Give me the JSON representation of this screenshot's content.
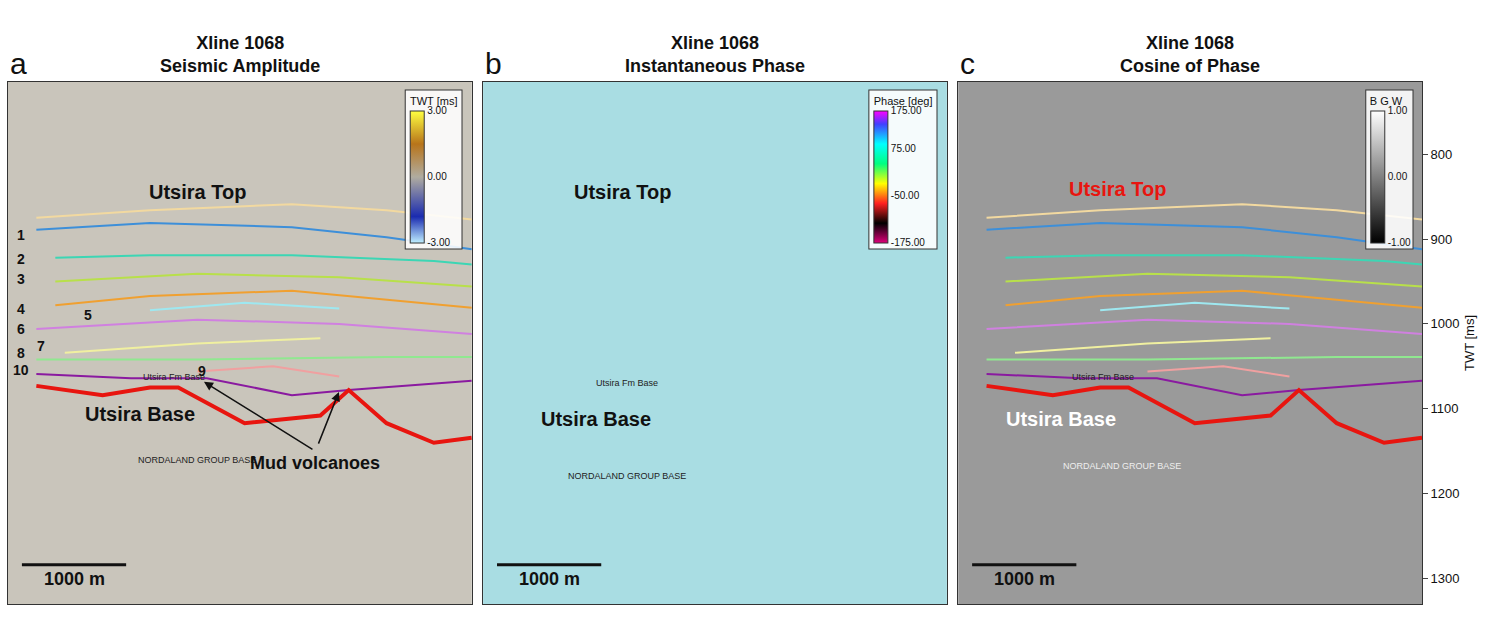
{
  "chart_data": [
    {
      "type": "line",
      "panel": "a",
      "title": "Xline 1068",
      "subtitle": "Seismic Amplitude",
      "xlim": [
        0,
        4450
      ],
      "ylim": [
        1330,
        715
      ],
      "tick_labels": false,
      "grid": false,
      "series": [
        {
          "name": "Utsira Top",
          "color": "#f2d9a0",
          "x": [
            272,
            1362,
            2724,
            3632,
            4450
          ],
          "values": [
            875,
            866,
            859,
            866,
            877
          ]
        },
        {
          "name": "1",
          "color": "#3d8fd9",
          "x": [
            272,
            1362,
            2724,
            3632,
            4450
          ],
          "values": [
            889,
            881,
            886,
            898,
            912
          ]
        },
        {
          "name": "2",
          "color": "#3cd6b4",
          "x": [
            454,
            1362,
            2724,
            4086,
            4450
          ],
          "values": [
            922,
            919,
            919,
            926,
            930
          ]
        },
        {
          "name": "3",
          "color": "#b8e04a",
          "x": [
            454,
            1816,
            3178,
            4450
          ],
          "values": [
            950,
            941,
            945,
            956
          ]
        },
        {
          "name": "4",
          "color": "#f0a030",
          "x": [
            454,
            1362,
            2724,
            4450
          ],
          "values": [
            978,
            967,
            961,
            981
          ]
        },
        {
          "name": "5",
          "color": "#9ee8f0",
          "x": [
            1362,
            2270,
            3178
          ],
          "values": [
            984,
            975,
            982
          ]
        },
        {
          "name": "6",
          "color": "#d080e0",
          "x": [
            272,
            1816,
            3178,
            4450
          ],
          "values": [
            1006,
            995,
            1000,
            1012
          ]
        },
        {
          "name": "7",
          "color": "#f0f0a0",
          "x": [
            545,
            1816,
            2997
          ],
          "values": [
            1034,
            1023,
            1017
          ]
        },
        {
          "name": "8",
          "color": "#90e890",
          "x": [
            272,
            1816,
            3632,
            4450
          ],
          "values": [
            1042,
            1042,
            1039,
            1039
          ]
        },
        {
          "name": "9",
          "color": "#f0a0a0",
          "x": [
            1816,
            2543,
            3178
          ],
          "values": [
            1056,
            1050,
            1062
          ]
        },
        {
          "name": "10",
          "color": "#8a1aa0",
          "x": [
            272,
            1180,
            1907,
            2724,
            3269,
            4450
          ],
          "values": [
            1059,
            1064,
            1064,
            1084,
            1078,
            1067
          ]
        },
        {
          "name": "Utsira Base",
          "color": "#e8150f",
          "line_style": "thick",
          "x": [
            272,
            908,
            1362,
            1634,
            2270,
            2997,
            3269,
            3632,
            4086,
            4450
          ],
          "values": [
            1073,
            1084,
            1075,
            1075,
            1117,
            1108,
            1078,
            1117,
            1140,
            1134
          ]
        }
      ],
      "annotations": [
        {
          "text": "Utsira Top",
          "x": 1818,
          "y": 845,
          "kind": "label",
          "color": "#111111"
        },
        {
          "text": "Utsira Base",
          "x": 1270,
          "y": 1106,
          "kind": "label",
          "color": "#111111"
        },
        {
          "text": "Utsira Fm Base",
          "x": 1590,
          "y": 1062,
          "kind": "small",
          "color": "#222222"
        },
        {
          "text": "NORDALAND GROUP BASE",
          "x": 1818,
          "y": 1160,
          "kind": "small",
          "color": "#222222"
        },
        {
          "text": "1",
          "x": 120,
          "y": 895,
          "kind": "horizon",
          "color": "#111111"
        },
        {
          "text": "2",
          "x": 120,
          "y": 924,
          "kind": "horizon",
          "color": "#111111"
        },
        {
          "text": "3",
          "x": 120,
          "y": 947,
          "kind": "horizon",
          "color": "#111111"
        },
        {
          "text": "4",
          "x": 120,
          "y": 982,
          "kind": "horizon",
          "color": "#111111"
        },
        {
          "text": "5",
          "x": 770,
          "y": 989,
          "kind": "horizon",
          "color": "#111111"
        },
        {
          "text": "6",
          "x": 120,
          "y": 1006,
          "kind": "horizon",
          "color": "#111111"
        },
        {
          "text": "7",
          "x": 320,
          "y": 1026,
          "kind": "horizon",
          "color": "#111111"
        },
        {
          "text": "8",
          "x": 120,
          "y": 1034,
          "kind": "horizon",
          "color": "#111111"
        },
        {
          "text": "9",
          "x": 1860,
          "y": 1056,
          "kind": "horizon",
          "color": "#111111"
        },
        {
          "text": "10",
          "x": 120,
          "y": 1054,
          "kind": "horizon",
          "color": "#111111"
        }
      ],
      "callout": {
        "text": "Mud volcanoes",
        "x": 2950,
        "y": 1150,
        "color": "#111111",
        "targets": [
          {
            "x": 1864,
            "y": 1067
          },
          {
            "x": 3182,
            "y": 1078
          }
        ]
      },
      "colorbar": {
        "title": "TWT [ms]",
        "range": [
          -3,
          3
        ],
        "ticks": [
          {
            "value": 3,
            "label": "3.00"
          },
          {
            "value": 0,
            "label": "0.00"
          },
          {
            "value": -3,
            "label": "-3.00"
          }
        ]
      },
      "scale_bar": {
        "length": 1000,
        "label": "1000 m"
      }
    },
    {
      "type": "image",
      "panel": "b",
      "title": "Xline 1068",
      "subtitle": "Instantaneous Phase",
      "xlim": [
        0,
        4450
      ],
      "ylim": [
        1330,
        715
      ],
      "tick_labels": false,
      "grid": false,
      "series": [],
      "annotations": [
        {
          "text": "Utsira Top",
          "x": 1335,
          "y": 845,
          "kind": "label",
          "color": "#111111"
        },
        {
          "text": "Utsira Base",
          "x": 1088,
          "y": 1112,
          "kind": "label",
          "color": "#111111"
        },
        {
          "text": "Utsira Fm Base",
          "x": 1384,
          "y": 1070,
          "kind": "small",
          "color": "#222222"
        },
        {
          "text": "NORDALAND GROUP BASE",
          "x": 1384,
          "y": 1179,
          "kind": "small",
          "color": "#222222"
        }
      ],
      "colorbar": {
        "title": "Phase [deg]",
        "range": [
          -175,
          175
        ],
        "ticks": [
          {
            "value": 175,
            "label": "175.00"
          },
          {
            "value": 75,
            "label": "75.00"
          },
          {
            "value": -50,
            "label": "-50.00"
          },
          {
            "value": -175,
            "label": "-175.00"
          }
        ]
      },
      "scale_bar": {
        "length": 1000,
        "label": "1000 m"
      }
    },
    {
      "type": "line",
      "panel": "c",
      "title": "Xline 1068",
      "subtitle": "Cosine of Phase",
      "xlim": [
        0,
        4450
      ],
      "ylim": [
        1330,
        715
      ],
      "yticks": [
        800,
        900,
        1000,
        1100,
        1200,
        1300
      ],
      "y_label": "TWT [ms]",
      "tick_labels": "y",
      "grid": false,
      "series": [
        {
          "name": "Utsira Top",
          "color": "#f2d9a0",
          "x": [
            272,
            1362,
            2724,
            3632,
            4450
          ],
          "values": [
            875,
            866,
            859,
            866,
            877
          ]
        },
        {
          "name": "1",
          "color": "#3d8fd9",
          "x": [
            272,
            1362,
            2724,
            3632,
            4450
          ],
          "values": [
            889,
            881,
            886,
            898,
            912
          ]
        },
        {
          "name": "2",
          "color": "#3cd6b4",
          "x": [
            454,
            1362,
            2724,
            4086,
            4450
          ],
          "values": [
            922,
            919,
            919,
            926,
            930
          ]
        },
        {
          "name": "3",
          "color": "#b8e04a",
          "x": [
            454,
            1816,
            3178,
            4450
          ],
          "values": [
            950,
            941,
            945,
            956
          ]
        },
        {
          "name": "4",
          "color": "#f0a030",
          "x": [
            454,
            1362,
            2724,
            4450
          ],
          "values": [
            978,
            967,
            961,
            981
          ]
        },
        {
          "name": "5",
          "color": "#9ee8f0",
          "x": [
            1362,
            2270,
            3178
          ],
          "values": [
            984,
            975,
            982
          ]
        },
        {
          "name": "6",
          "color": "#d080e0",
          "x": [
            272,
            1816,
            3178,
            4450
          ],
          "values": [
            1006,
            995,
            1000,
            1012
          ]
        },
        {
          "name": "7",
          "color": "#f0f0a0",
          "x": [
            545,
            1816,
            2997
          ],
          "values": [
            1034,
            1023,
            1017
          ]
        },
        {
          "name": "8",
          "color": "#90e890",
          "x": [
            272,
            1816,
            3632,
            4450
          ],
          "values": [
            1042,
            1042,
            1039,
            1039
          ]
        },
        {
          "name": "9",
          "color": "#f0a0a0",
          "x": [
            1816,
            2543,
            3178
          ],
          "values": [
            1056,
            1050,
            1062
          ]
        },
        {
          "name": "10",
          "color": "#8a1aa0",
          "x": [
            272,
            1180,
            1907,
            2724,
            3269,
            4450
          ],
          "values": [
            1059,
            1064,
            1064,
            1084,
            1078,
            1067
          ]
        },
        {
          "name": "Utsira Base",
          "color": "#e8150f",
          "line_style": "thick",
          "x": [
            272,
            908,
            1362,
            1634,
            2270,
            2997,
            3269,
            3632,
            4086,
            4450
          ],
          "values": [
            1073,
            1084,
            1075,
            1075,
            1117,
            1108,
            1078,
            1117,
            1140,
            1134
          ]
        }
      ],
      "annotations": [
        {
          "text": "Utsira Top",
          "x": 1528,
          "y": 841,
          "kind": "label",
          "color": "#e8150f"
        },
        {
          "text": "Utsira Base",
          "x": 989,
          "y": 1112,
          "kind": "label",
          "color": "#ffffff"
        },
        {
          "text": "Utsira Fm Base",
          "x": 1393,
          "y": 1062,
          "kind": "small",
          "color": "#222222"
        },
        {
          "text": "NORDALAND GROUP BASE",
          "x": 1573,
          "y": 1167,
          "kind": "small",
          "color": "#eeeeee"
        }
      ],
      "colorbar": {
        "title": "B G W",
        "range": [
          -1,
          1
        ],
        "ticks": [
          {
            "value": 1,
            "label": "1.00"
          },
          {
            "value": 0,
            "label": "0.00"
          },
          {
            "value": -1,
            "label": "-1.00"
          }
        ]
      },
      "scale_bar": {
        "length": 1000,
        "label": "1000 m"
      }
    }
  ]
}
